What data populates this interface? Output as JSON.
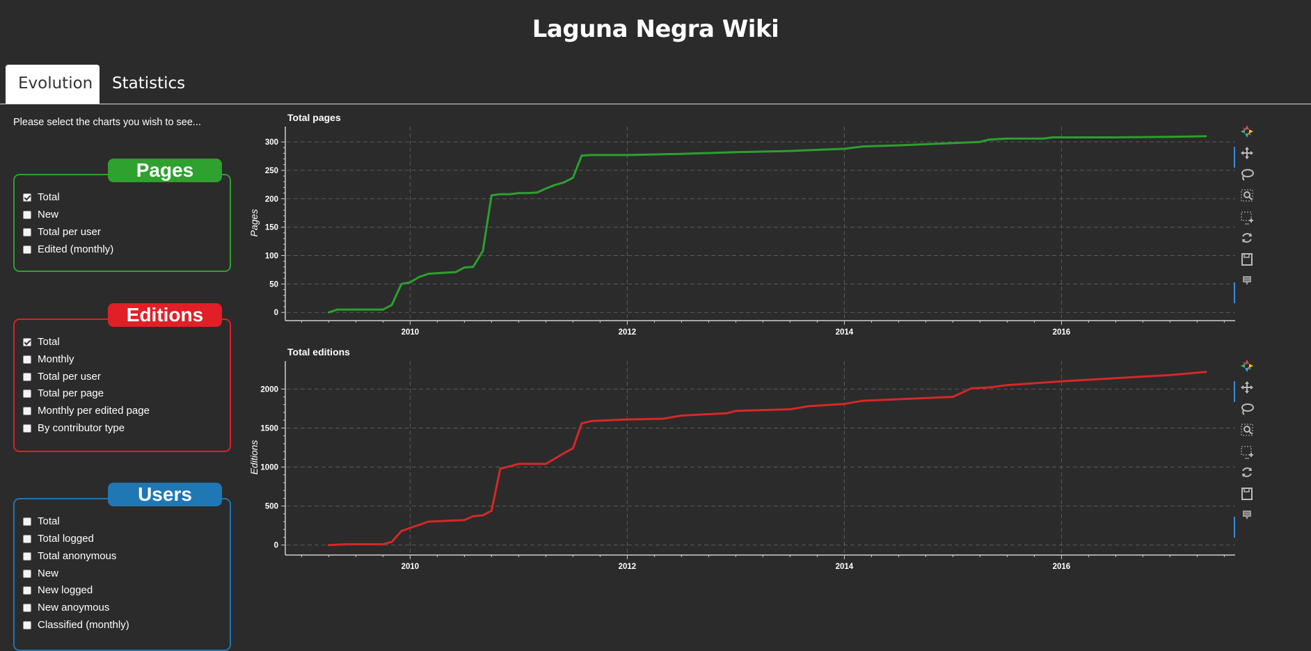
{
  "header": {
    "title": "Laguna Negra Wiki"
  },
  "tabs": [
    {
      "label": "Evolution",
      "active": true
    },
    {
      "label": "Statistics",
      "active": false
    }
  ],
  "sidebar": {
    "intro": "Please select the charts you wish to see...",
    "groups": [
      {
        "title": "Pages",
        "color": "#2ea12e",
        "options": [
          {
            "label": "Total",
            "checked": true
          },
          {
            "label": "New",
            "checked": false
          },
          {
            "label": "Total per user",
            "checked": false
          },
          {
            "label": "Edited (monthly)",
            "checked": false
          }
        ]
      },
      {
        "title": "Editions",
        "color": "#e21f26",
        "options": [
          {
            "label": "Total",
            "checked": true
          },
          {
            "label": "Monthly",
            "checked": false
          },
          {
            "label": "Total per user",
            "checked": false
          },
          {
            "label": "Total per page",
            "checked": false
          },
          {
            "label": "Monthly per edited page",
            "checked": false
          },
          {
            "label": "By contributor type",
            "checked": false
          }
        ]
      },
      {
        "title": "Users",
        "color": "#1f77b4",
        "options": [
          {
            "label": "Total",
            "checked": false
          },
          {
            "label": "Total logged",
            "checked": false
          },
          {
            "label": "Total anonymous",
            "checked": false
          },
          {
            "label": "New",
            "checked": false
          },
          {
            "label": "New logged",
            "checked": false
          },
          {
            "label": "New anoymous",
            "checked": false
          },
          {
            "label": "Classified (monthly)",
            "checked": false
          }
        ]
      }
    ]
  },
  "toolbar": {
    "tools": [
      "bokeh-logo-icon",
      "pan-icon",
      "lasso-icon",
      "zoom-icon",
      "box-select-icon",
      "reset-icon",
      "save-icon",
      "hover-icon"
    ]
  },
  "chart_data": [
    {
      "type": "line",
      "title": "Total pages",
      "xlabel": "",
      "ylabel": "Pages",
      "xlim": [
        2008.85,
        2017.6
      ],
      "ylim": [
        -12,
        327
      ],
      "xticks": [
        2010,
        2012,
        2014,
        2016
      ],
      "yticks": [
        0,
        50,
        100,
        150,
        200,
        250,
        300
      ],
      "grid": true,
      "color": "#2ca02c",
      "x": [
        2009.25,
        2009.33,
        2009.5,
        2009.75,
        2009.83,
        2009.92,
        2010.0,
        2010.08,
        2010.17,
        2010.25,
        2010.33,
        2010.42,
        2010.5,
        2010.58,
        2010.67,
        2010.75,
        2010.83,
        2010.92,
        2011.0,
        2011.08,
        2011.17,
        2011.25,
        2011.33,
        2011.42,
        2011.5,
        2011.58,
        2011.67,
        2012.0,
        2012.5,
        2013.0,
        2013.5,
        2014.0,
        2014.17,
        2014.5,
        2015.0,
        2015.25,
        2015.33,
        2015.5,
        2015.83,
        2015.92,
        2016.5,
        2017.0,
        2017.33
      ],
      "y": [
        0,
        5,
        5,
        5,
        13,
        50,
        53,
        62,
        68,
        69,
        70,
        71,
        79,
        80,
        108,
        206,
        208,
        208,
        210,
        210,
        211,
        218,
        224,
        229,
        237,
        276,
        277,
        277,
        279,
        282,
        284,
        288,
        292,
        294,
        298,
        300,
        304,
        306,
        306,
        308,
        308,
        309,
        310
      ]
    },
    {
      "type": "line",
      "title": "Total editions",
      "xlabel": "",
      "ylabel": "Editions",
      "xlim": [
        2008.85,
        2017.6
      ],
      "ylim": [
        -110,
        2360
      ],
      "xticks": [
        2010,
        2012,
        2014,
        2016
      ],
      "yticks": [
        0,
        500,
        1000,
        1500,
        2000
      ],
      "grid": true,
      "color": "#d62728",
      "x": [
        2009.25,
        2009.42,
        2009.75,
        2009.83,
        2009.92,
        2010.0,
        2010.17,
        2010.33,
        2010.5,
        2010.58,
        2010.67,
        2010.75,
        2010.83,
        2010.92,
        2011.0,
        2011.25,
        2011.42,
        2011.5,
        2011.58,
        2011.67,
        2012.0,
        2012.33,
        2012.5,
        2012.92,
        2013.0,
        2013.5,
        2013.67,
        2014.0,
        2014.17,
        2014.5,
        2015.0,
        2015.17,
        2015.33,
        2015.5,
        2016.0,
        2016.5,
        2017.0,
        2017.33
      ],
      "y": [
        0,
        10,
        10,
        40,
        180,
        220,
        300,
        310,
        320,
        370,
        380,
        440,
        980,
        1010,
        1040,
        1040,
        1180,
        1240,
        1560,
        1590,
        1610,
        1620,
        1660,
        1690,
        1720,
        1740,
        1780,
        1810,
        1850,
        1870,
        1900,
        2010,
        2020,
        2050,
        2100,
        2140,
        2180,
        2220
      ]
    }
  ]
}
